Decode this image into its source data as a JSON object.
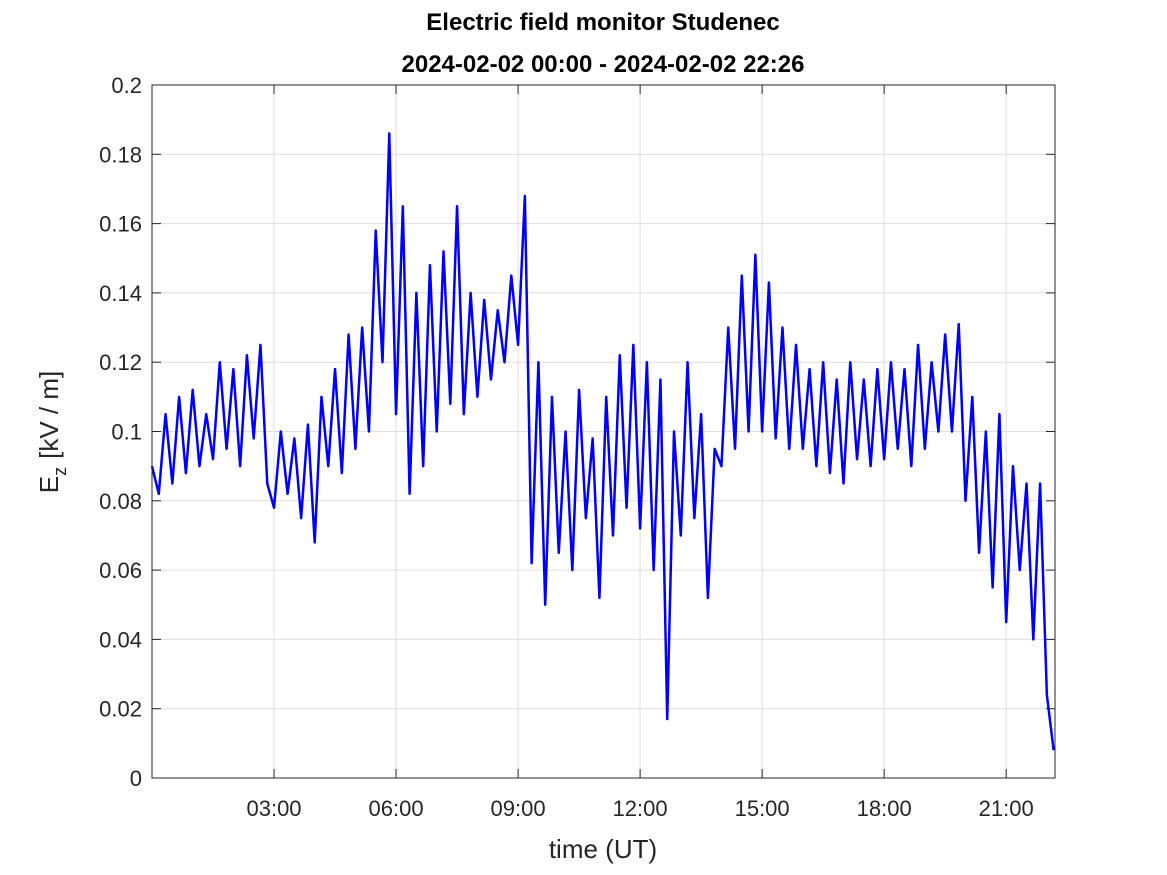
{
  "chart_data": {
    "type": "line",
    "title": "Electric field monitor Studenec",
    "subtitle": "2024-02-02 00:00 - 2024-02-02 22:26",
    "xlabel": "time (UT)",
    "ylabel": {
      "symbol": "E",
      "subscript": "z",
      "unit": "[kV / m]"
    },
    "x": [
      "00:00",
      "00:10",
      "00:20",
      "00:30",
      "00:40",
      "00:50",
      "01:00",
      "01:10",
      "01:20",
      "01:30",
      "01:40",
      "01:50",
      "02:00",
      "02:10",
      "02:20",
      "02:30",
      "02:40",
      "02:50",
      "03:00",
      "03:10",
      "03:20",
      "03:30",
      "03:40",
      "03:50",
      "04:00",
      "04:10",
      "04:20",
      "04:30",
      "04:40",
      "04:50",
      "05:00",
      "05:10",
      "05:20",
      "05:30",
      "05:40",
      "05:50",
      "06:00",
      "06:10",
      "06:20",
      "06:30",
      "06:40",
      "06:50",
      "07:00",
      "07:10",
      "07:20",
      "07:30",
      "07:40",
      "07:50",
      "08:00",
      "08:10",
      "08:20",
      "08:30",
      "08:40",
      "08:50",
      "09:00",
      "09:10",
      "09:20",
      "09:30",
      "09:40",
      "09:50",
      "10:00",
      "10:10",
      "10:20",
      "10:30",
      "10:40",
      "10:50",
      "11:00",
      "11:10",
      "11:20",
      "11:30",
      "11:40",
      "11:50",
      "12:00",
      "12:10",
      "12:20",
      "12:30",
      "12:40",
      "12:50",
      "13:00",
      "13:10",
      "13:20",
      "13:30",
      "13:40",
      "13:50",
      "14:00",
      "14:10",
      "14:20",
      "14:30",
      "14:40",
      "14:50",
      "15:00",
      "15:10",
      "15:20",
      "15:30",
      "15:40",
      "15:50",
      "16:00",
      "16:10",
      "16:20",
      "16:30",
      "16:40",
      "16:50",
      "17:00",
      "17:10",
      "17:20",
      "17:30",
      "17:40",
      "17:50",
      "18:00",
      "18:10",
      "18:20",
      "18:30",
      "18:40",
      "18:50",
      "19:00",
      "19:10",
      "19:20",
      "19:30",
      "19:40",
      "19:50",
      "20:00",
      "20:10",
      "20:20",
      "20:30",
      "20:40",
      "20:50",
      "21:00",
      "21:10",
      "21:20",
      "21:30",
      "21:40",
      "21:50",
      "22:00",
      "22:10"
    ],
    "series": [
      {
        "color": "#0000ff",
        "values": [
          0.09,
          0.082,
          0.105,
          0.085,
          0.11,
          0.088,
          0.112,
          0.09,
          0.105,
          0.092,
          0.12,
          0.095,
          0.118,
          0.09,
          0.122,
          0.098,
          0.125,
          0.085,
          0.078,
          0.1,
          0.082,
          0.098,
          0.075,
          0.102,
          0.068,
          0.11,
          0.09,
          0.118,
          0.088,
          0.128,
          0.095,
          0.13,
          0.1,
          0.158,
          0.12,
          0.186,
          0.105,
          0.165,
          0.082,
          0.14,
          0.09,
          0.148,
          0.1,
          0.152,
          0.108,
          0.165,
          0.105,
          0.14,
          0.11,
          0.138,
          0.115,
          0.135,
          0.12,
          0.145,
          0.125,
          0.168,
          0.062,
          0.12,
          0.05,
          0.11,
          0.065,
          0.1,
          0.06,
          0.112,
          0.075,
          0.098,
          0.052,
          0.11,
          0.07,
          0.122,
          0.078,
          0.125,
          0.072,
          0.12,
          0.06,
          0.115,
          0.017,
          0.1,
          0.07,
          0.12,
          0.075,
          0.105,
          0.052,
          0.095,
          0.09,
          0.13,
          0.095,
          0.145,
          0.1,
          0.151,
          0.1,
          0.143,
          0.098,
          0.13,
          0.095,
          0.125,
          0.095,
          0.118,
          0.09,
          0.12,
          0.088,
          0.115,
          0.085,
          0.12,
          0.092,
          0.115,
          0.09,
          0.118,
          0.092,
          0.12,
          0.095,
          0.118,
          0.09,
          0.125,
          0.095,
          0.12,
          0.1,
          0.128,
          0.1,
          0.131,
          0.08,
          0.11,
          0.065,
          0.1,
          0.055,
          0.105,
          0.045,
          0.09,
          0.06,
          0.085,
          0.04,
          0.085,
          0.024,
          0.008
        ]
      }
    ],
    "xlim": [
      "00:00",
      "22:12"
    ],
    "xticks": [
      "03:00",
      "06:00",
      "09:00",
      "12:00",
      "15:00",
      "18:00",
      "21:00"
    ],
    "ylim": [
      0,
      0.2
    ],
    "yticks": [
      0,
      0.02,
      0.04,
      0.06,
      0.08,
      0.1,
      0.12,
      0.14,
      0.16,
      0.18,
      0.2
    ],
    "grid": true
  }
}
